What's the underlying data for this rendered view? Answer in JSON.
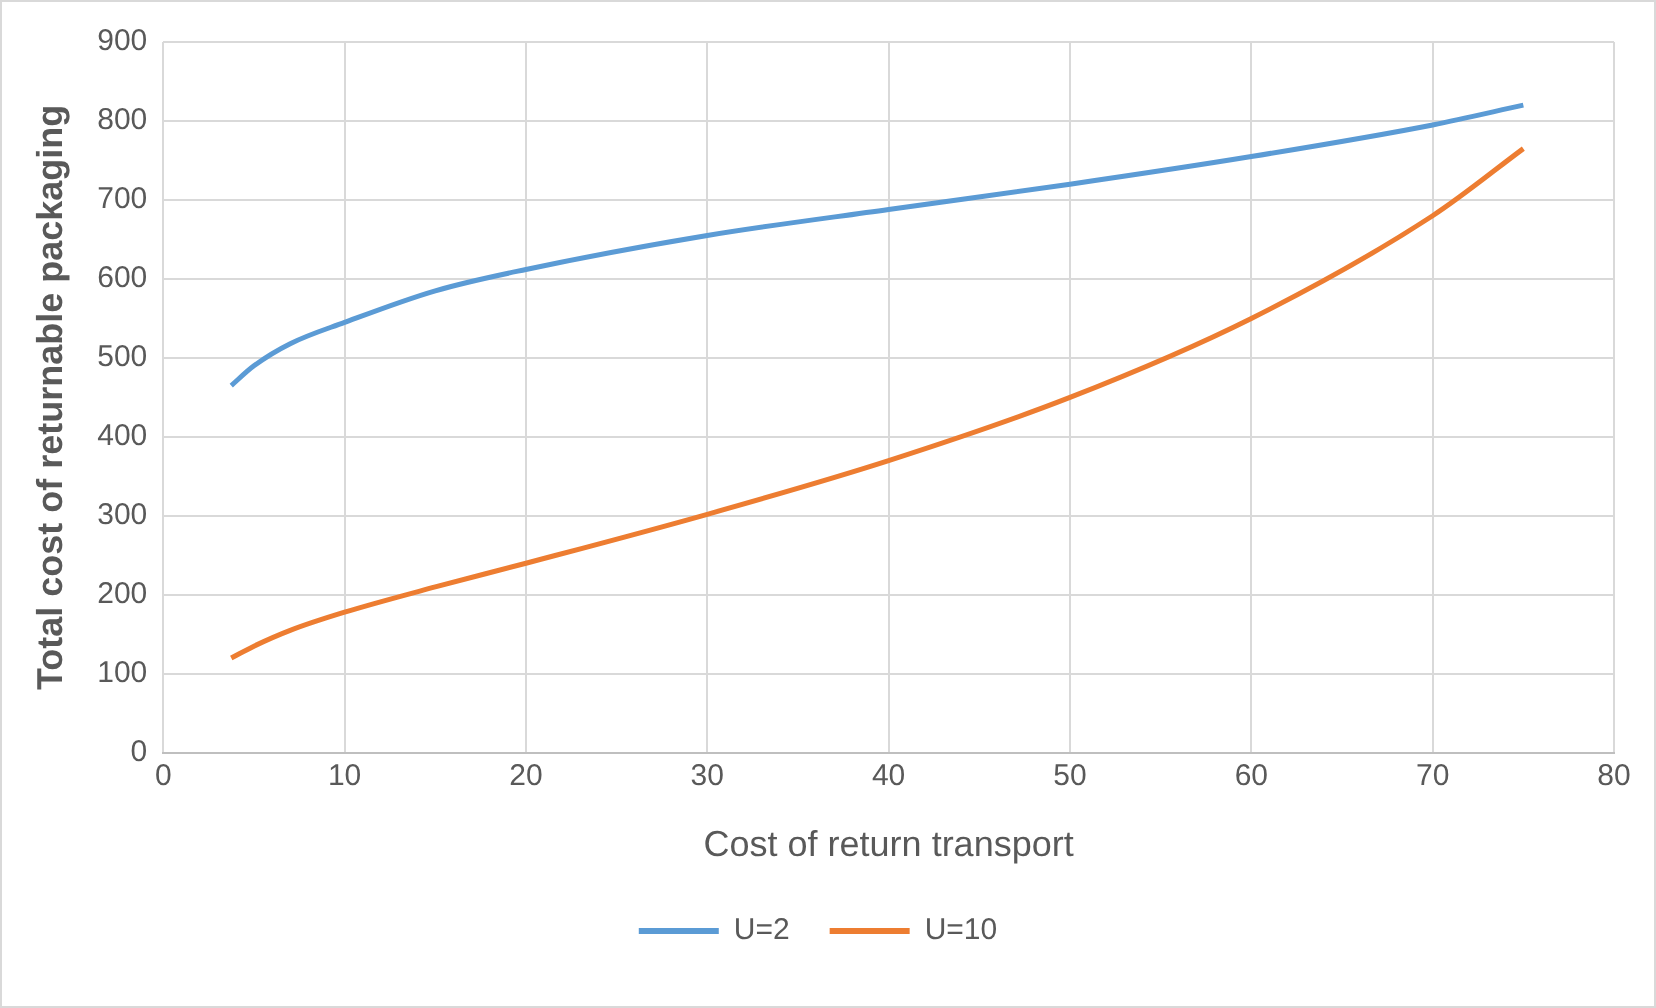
{
  "chart_data": {
    "type": "line",
    "xlabel": "Cost of return transport",
    "ylabel": "Total cost of returnable packaging",
    "xlim": [
      0,
      80
    ],
    "xticks": [
      0,
      10,
      20,
      30,
      40,
      50,
      60,
      70,
      80
    ],
    "ylim": [
      0,
      900
    ],
    "yticks": [
      0,
      100,
      200,
      300,
      400,
      500,
      600,
      700,
      800,
      900
    ],
    "grid": true,
    "legend": "bottom",
    "marker": "none",
    "line_style": "solid",
    "series": [
      {
        "name": "U=2",
        "color": "#5b9bd5",
        "x": [
          3.75,
          5,
          7,
          10,
          15,
          20,
          30,
          40,
          50,
          60,
          70,
          75
        ],
        "values": [
          465,
          490,
          518,
          545,
          585,
          612,
          655,
          688,
          720,
          755,
          795,
          820
        ]
      },
      {
        "name": "U=10",
        "color": "#ed7d31",
        "x": [
          3.75,
          5,
          7,
          10,
          15,
          20,
          30,
          40,
          50,
          60,
          70,
          75
        ],
        "values": [
          120,
          135,
          155,
          178,
          210,
          240,
          302,
          370,
          450,
          550,
          680,
          765
        ]
      }
    ]
  }
}
